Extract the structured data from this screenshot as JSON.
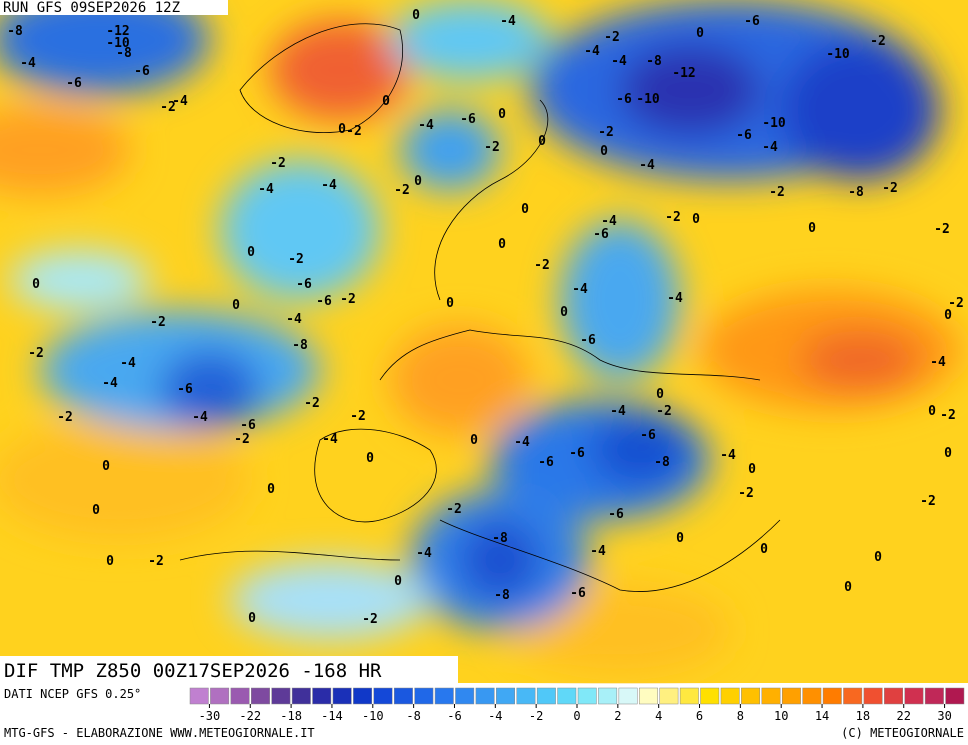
{
  "header": {
    "run": "RUN GFS 09SEP2026 12Z",
    "product": "DIF TMP Z850 00Z17SEP2026 -168 HR"
  },
  "footer": {
    "source": "DATI NCEP GFS 0.25°",
    "credit": "MTG-GFS - ELABORAZIONE WWW.METEOGIORNALE.IT",
    "copyright": "(C) METEOGIORNALE"
  },
  "colorbar": {
    "colors": [
      "#c080d0",
      "#b070c0",
      "#9a5ab0",
      "#7e4aa0",
      "#5e3a98",
      "#40309a",
      "#2a2ca8",
      "#1a30b8",
      "#1038c8",
      "#1448d8",
      "#1a58e0",
      "#2068e8",
      "#2878ee",
      "#3088f0",
      "#3898f2",
      "#40a8f4",
      "#48b8f6",
      "#50c8f8",
      "#60d8f8",
      "#80e8f8",
      "#a8f0f8",
      "#d8f8f8",
      "#fffcc0",
      "#fff080",
      "#ffe840",
      "#ffe000",
      "#ffd000",
      "#ffc000",
      "#ffb000",
      "#ffa000",
      "#ff9000",
      "#ff7c00",
      "#f86820",
      "#f05030",
      "#e04040",
      "#d03050",
      "#c02858",
      "#b01850"
    ],
    "ticks": [
      -30,
      -22,
      -18,
      -14,
      -10,
      -8,
      -6,
      -4,
      -2,
      0,
      2,
      4,
      6,
      8,
      10,
      14,
      18,
      22,
      30
    ]
  },
  "map_labels": [
    -8,
    -12,
    -10,
    -8,
    -4,
    -6,
    -6,
    -4,
    -2,
    0,
    0,
    0,
    -2,
    -4,
    -6,
    0,
    -2,
    0,
    -2,
    0,
    -4,
    -2,
    -4,
    -4,
    -2,
    0,
    0,
    -4,
    -6,
    -2,
    0,
    -2,
    -8,
    -2,
    0,
    -2,
    0,
    0,
    -2,
    -6,
    -2,
    0,
    -4,
    -4,
    0,
    -6,
    -2,
    0,
    0,
    -4,
    -2,
    -6,
    -8,
    -2,
    -4,
    -4,
    -6,
    0,
    -2,
    -4,
    -2,
    -2,
    -4,
    -6,
    -2,
    -2,
    -4,
    0,
    -4,
    -6,
    -6,
    -6,
    -8,
    -4,
    0,
    0,
    0,
    0,
    -2,
    -2,
    0,
    -6,
    -8,
    0,
    -4,
    -4,
    0,
    -2,
    0,
    0,
    0,
    -8,
    -6,
    -2,
    0,
    0,
    -6,
    0,
    -2,
    -10,
    -4,
    -8,
    -12,
    -6,
    -10,
    -10,
    -6,
    -4,
    -4,
    -2,
    -4,
    0,
    -4,
    -2,
    0,
    -2,
    0,
    -2
  ]
}
